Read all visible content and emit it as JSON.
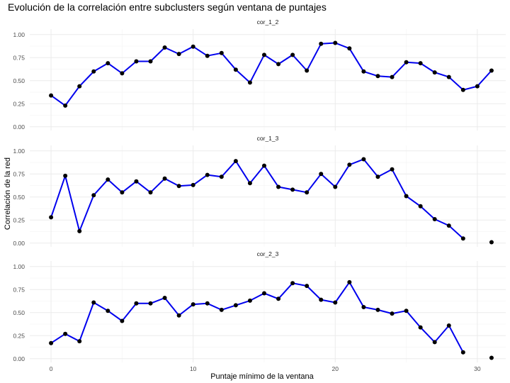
{
  "chart_data": {
    "type": "line",
    "title": "Evolución de la correlación entre subclusters según ventana de puntajes",
    "xlabel": "Puntaje mínimo de la ventana",
    "ylabel": "Correlación de la red",
    "xlim": [
      -1.5,
      32.0
    ],
    "ylim": [
      -0.04,
      1.06
    ],
    "x_ticks": [
      0,
      10,
      20,
      30
    ],
    "y_ticks": [
      0.0,
      0.25,
      0.5,
      0.75,
      1.0
    ],
    "y_tick_labels": [
      "0.00",
      "0.25",
      "0.50",
      "0.75",
      "1.00"
    ],
    "grid": true,
    "line_color": "#0000ee",
    "point_color": "#000000",
    "x": [
      0,
      1,
      2,
      3,
      4,
      5,
      6,
      7,
      8,
      9,
      10,
      11,
      12,
      13,
      14,
      15,
      16,
      17,
      18,
      19,
      20,
      21,
      22,
      23,
      24,
      25,
      26,
      27,
      28,
      29,
      30,
      31
    ],
    "panels": [
      {
        "name": "cor_1_2",
        "values": [
          0.34,
          0.23,
          0.44,
          0.6,
          0.69,
          0.58,
          0.71,
          0.71,
          0.86,
          0.79,
          0.87,
          0.77,
          0.8,
          0.62,
          0.48,
          0.78,
          0.68,
          0.78,
          0.61,
          0.9,
          0.91,
          0.85,
          0.6,
          0.55,
          0.54,
          0.7,
          0.69,
          0.59,
          0.54,
          0.4,
          0.44,
          0.61
        ]
      },
      {
        "name": "cor_1_3",
        "values": [
          0.28,
          0.73,
          0.13,
          0.52,
          0.69,
          0.55,
          0.67,
          0.55,
          0.7,
          0.62,
          0.63,
          0.74,
          0.72,
          0.89,
          0.65,
          0.84,
          0.61,
          0.58,
          0.55,
          0.75,
          0.61,
          0.85,
          0.91,
          0.72,
          0.8,
          0.51,
          0.4,
          0.26,
          0.19,
          0.05,
          null,
          0.01
        ]
      },
      {
        "name": "cor_2_3",
        "values": [
          0.17,
          0.27,
          0.19,
          0.61,
          0.52,
          0.41,
          0.6,
          0.6,
          0.66,
          0.47,
          0.59,
          0.6,
          0.53,
          0.58,
          0.63,
          0.71,
          0.65,
          0.82,
          0.79,
          0.64,
          0.61,
          0.83,
          0.56,
          0.53,
          0.49,
          0.52,
          0.34,
          0.18,
          0.36,
          0.07,
          null,
          0.01
        ]
      }
    ]
  }
}
